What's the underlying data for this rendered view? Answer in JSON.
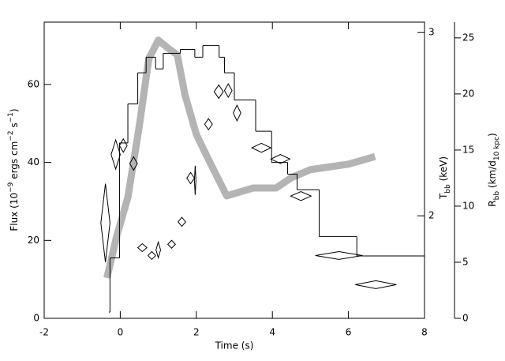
{
  "chart_data": {
    "type": "combo",
    "x_label": "Time (s)",
    "y_label": [
      "Flux (10",
      "−9",
      " ergs cm",
      "−2",
      " s",
      "−1",
      ")"
    ],
    "y2_label": [
      "T",
      "bb",
      " (keV)"
    ],
    "y3_label": [
      "R",
      "bb",
      " (km/d",
      "10 kpc",
      ")"
    ],
    "xlim": [
      -2,
      8
    ],
    "xticks": [
      -2,
      0,
      2,
      4,
      6,
      8
    ],
    "ylim": [
      0,
      76
    ],
    "yticks": [
      0,
      20,
      40,
      60
    ],
    "y2lim": [
      1.594,
      3.07
    ],
    "y2ticks": [
      2,
      3
    ],
    "y2log": true,
    "y3lim": [
      0,
      26.4
    ],
    "y3ticks": [
      0,
      5,
      10,
      15,
      20,
      25
    ],
    "series": [
      {
        "type": "histogram",
        "color": "#000000",
        "bins": [
          -0.3,
          -0.27,
          -0.02,
          0.2,
          0.46,
          0.68,
          0.93,
          1.13,
          1.58,
          1.96,
          2.17,
          2.6,
          2.74,
          3.0,
          3.56,
          3.98,
          4.4,
          4.65,
          5.23,
          6.22,
          8.0
        ],
        "values": [
          1.6,
          15.5,
          45,
          55,
          63,
          67,
          64,
          68,
          69,
          67,
          70,
          67,
          63,
          56,
          48,
          40,
          37,
          33,
          21,
          16
        ]
      },
      {
        "type": "band",
        "axis": "y2",
        "color": "#b4b4b4",
        "x": [
          -0.35,
          -0.1,
          0.2,
          0.5,
          0.75,
          1.0,
          1.3,
          1.5,
          1.7,
          2.0,
          2.3,
          2.8,
          3.5,
          4.1,
          4.5,
          5.0,
          6.0,
          6.7
        ],
        "values": [
          1.743,
          1.908,
          2.083,
          2.438,
          2.83,
          2.95,
          2.89,
          2.855,
          2.615,
          2.395,
          2.273,
          2.09,
          2.127,
          2.127,
          2.176,
          2.215,
          2.242,
          2.28
        ]
      },
      {
        "type": "diamond",
        "axis": "y3",
        "color": "#000000",
        "x": [
          -0.39,
          -0.12,
          0.08,
          0.35,
          0.58,
          0.83,
          1.0,
          1.35,
          1.62,
          1.85,
          1.97,
          2.32,
          2.59,
          2.84,
          3.07,
          3.71,
          4.21,
          4.75,
          5.75,
          6.72
        ],
        "xerr": [
          0.12,
          0.12,
          0.1,
          0.1,
          0.12,
          0.1,
          0.06,
          0.1,
          0.1,
          0.1,
          0.02,
          0.1,
          0.12,
          0.1,
          0.1,
          0.25,
          0.25,
          0.27,
          0.62,
          0.54
        ],
        "values": [
          8.5,
          14.6,
          15.4,
          13.8,
          6.3,
          5.6,
          6.1,
          6.6,
          8.6,
          12.5,
          12.3,
          17.3,
          20.2,
          20.3,
          18.3,
          15.2,
          14.2,
          10.9,
          5.6,
          3.0
        ],
        "yerr": [
          3.5,
          1.3,
          0.6,
          0.6,
          0.35,
          0.35,
          0.7,
          0.35,
          0.4,
          0.5,
          1.3,
          0.5,
          0.6,
          0.6,
          0.7,
          0.4,
          0.4,
          0.4,
          0.35,
          0.35
        ]
      }
    ]
  }
}
